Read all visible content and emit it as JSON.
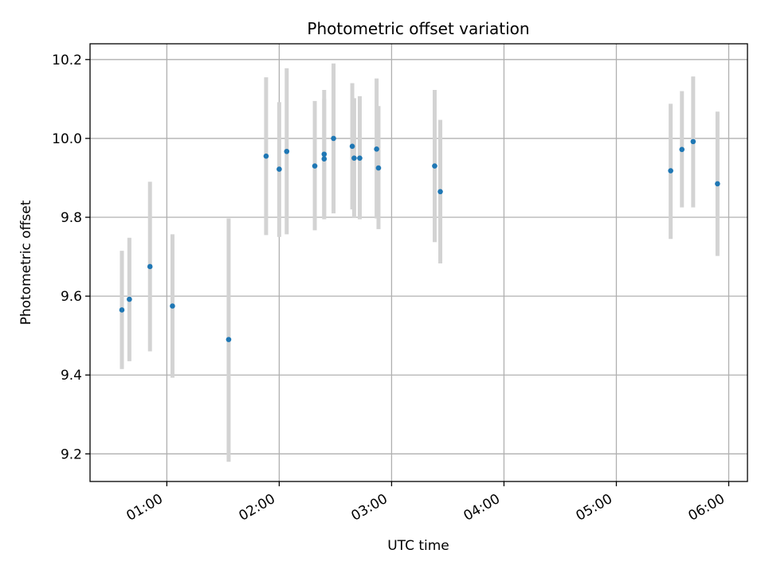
{
  "chart_data": {
    "type": "scatter",
    "title": "Photometric offset variation",
    "xlabel": "UTC time",
    "ylabel": "Photometric offset",
    "x_axis_kind": "time",
    "xlim": [
      "00:19",
      "06:10"
    ],
    "ylim": [
      9.13,
      10.24
    ],
    "xticks": [
      "01:00",
      "02:00",
      "03:00",
      "04:00",
      "05:00",
      "06:00"
    ],
    "yticks": [
      9.2,
      9.4,
      9.6,
      9.8,
      10.0,
      10.2
    ],
    "ytick_labels": [
      "9.2",
      "9.4",
      "9.6",
      "9.8",
      "10.0",
      "10.2"
    ],
    "grid": true,
    "colors": {
      "marker": "#1f77b4",
      "errorbar": "#d3d3d3"
    },
    "points": [
      {
        "x": "00:36",
        "y": 9.565,
        "ylow": 9.415,
        "yhigh": 9.715
      },
      {
        "x": "00:40",
        "y": 9.592,
        "ylow": 9.435,
        "yhigh": 9.748
      },
      {
        "x": "00:51",
        "y": 9.675,
        "ylow": 9.46,
        "yhigh": 9.89
      },
      {
        "x": "01:03",
        "y": 9.575,
        "ylow": 9.393,
        "yhigh": 9.757
      },
      {
        "x": "01:33",
        "y": 9.49,
        "ylow": 9.18,
        "yhigh": 9.797
      },
      {
        "x": "01:53",
        "y": 9.955,
        "ylow": 9.755,
        "yhigh": 10.155
      },
      {
        "x": "02:00",
        "y": 9.922,
        "ylow": 9.75,
        "yhigh": 10.092
      },
      {
        "x": "02:04",
        "y": 9.967,
        "ylow": 9.757,
        "yhigh": 10.178
      },
      {
        "x": "02:19",
        "y": 9.93,
        "ylow": 9.767,
        "yhigh": 10.095
      },
      {
        "x": "02:24",
        "y": 9.96,
        "ylow": 9.8,
        "yhigh": 10.123
      },
      {
        "x": "02:24",
        "y": 9.948,
        "ylow": 9.795,
        "yhigh": 10.1
      },
      {
        "x": "02:29",
        "y": 10.0,
        "ylow": 9.81,
        "yhigh": 10.19
      },
      {
        "x": "02:39",
        "y": 9.98,
        "ylow": 9.82,
        "yhigh": 10.14
      },
      {
        "x": "02:40",
        "y": 9.95,
        "ylow": 9.798,
        "yhigh": 10.102
      },
      {
        "x": "02:43",
        "y": 9.95,
        "ylow": 9.795,
        "yhigh": 10.107
      },
      {
        "x": "02:52",
        "y": 9.973,
        "ylow": 9.797,
        "yhigh": 10.152
      },
      {
        "x": "02:53",
        "y": 9.925,
        "ylow": 9.77,
        "yhigh": 10.082
      },
      {
        "x": "03:23",
        "y": 9.93,
        "ylow": 9.737,
        "yhigh": 10.123
      },
      {
        "x": "03:26",
        "y": 9.865,
        "ylow": 9.683,
        "yhigh": 10.047
      },
      {
        "x": "05:29",
        "y": 9.918,
        "ylow": 9.745,
        "yhigh": 10.088
      },
      {
        "x": "05:35",
        "y": 9.972,
        "ylow": 9.825,
        "yhigh": 10.12
      },
      {
        "x": "05:41",
        "y": 9.992,
        "ylow": 9.825,
        "yhigh": 10.157
      },
      {
        "x": "05:54",
        "y": 9.885,
        "ylow": 9.702,
        "yhigh": 10.068
      }
    ]
  }
}
